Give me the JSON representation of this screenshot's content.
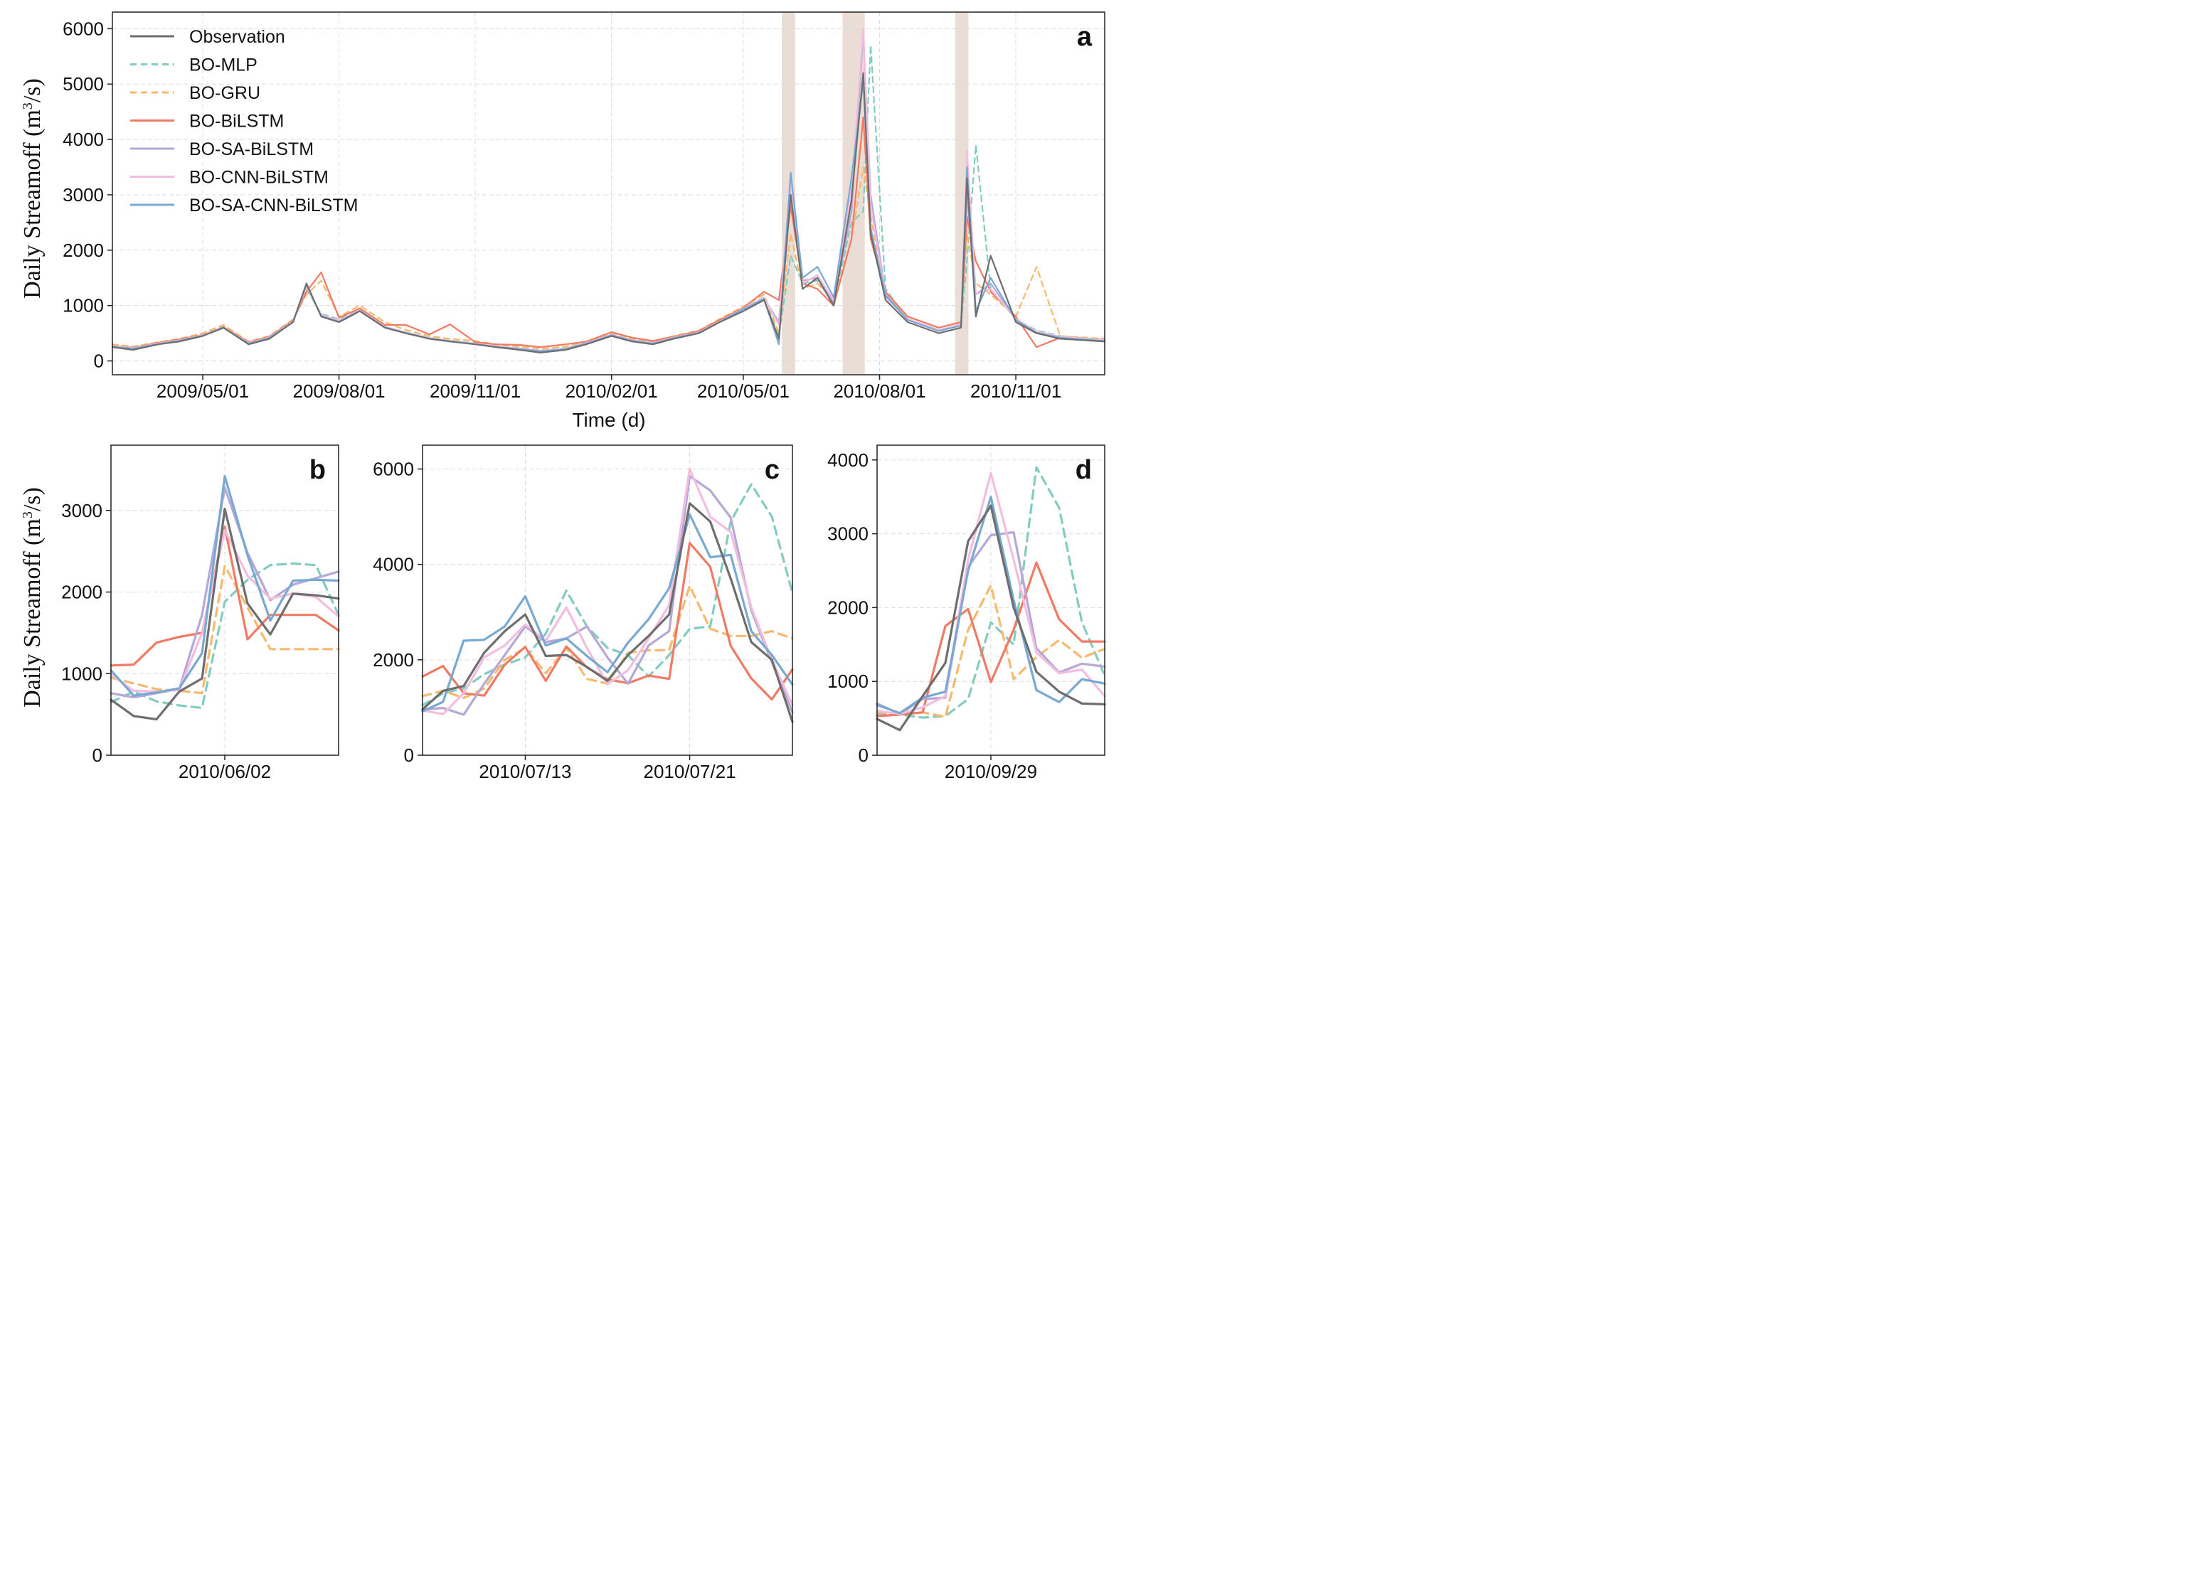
{
  "ylabel": "Daily Streamoff (m³/s)",
  "xlabel_main": "Time (d)",
  "colors": {
    "Observation": "#6e6e6e",
    "BO-MLP": "#84cbc0",
    "BO-GRU": "#f7b96d",
    "BO-BiLSTM": "#f07a63",
    "BO-SA-BiLSTM": "#b6a8d6",
    "BO-CNN-BiLSTM": "#f3bde0",
    "BO-SA-CNN-BiLSTM": "#78a9d3",
    "highlight": "#e9ddd6"
  },
  "chart_data": [
    {
      "panel": "a",
      "type": "line",
      "xlabel": "Time (d)",
      "ylabel": "Daily Streamoff (m³/s)",
      "x_range": [
        "2009-03-01",
        "2010-12-31"
      ],
      "ylim": [
        -250,
        6300
      ],
      "yticks": [
        0,
        1000,
        2000,
        3000,
        4000,
        5000,
        6000
      ],
      "xticks": [
        "2009/05/01",
        "2009/08/01",
        "2009/11/01",
        "2010/02/01",
        "2010/05/01",
        "2010/08/01",
        "2010/11/01"
      ],
      "grid": true,
      "legend": "top-left",
      "highlight_ranges": [
        [
          "2010-05-27",
          "2010-06-05"
        ],
        [
          "2010-07-07",
          "2010-07-22"
        ],
        [
          "2010-09-21",
          "2010-09-30"
        ]
      ],
      "x": [
        "2009-03-01",
        "2009-03-15",
        "2009-04-01",
        "2009-04-15",
        "2009-05-01",
        "2009-05-15",
        "2009-06-01",
        "2009-06-15",
        "2009-07-01",
        "2009-07-10",
        "2009-07-20",
        "2009-08-01",
        "2009-08-15",
        "2009-09-01",
        "2009-09-15",
        "2009-10-01",
        "2009-10-15",
        "2009-11-01",
        "2009-11-15",
        "2009-12-01",
        "2009-12-15",
        "2010-01-01",
        "2010-01-15",
        "2010-02-01",
        "2010-02-15",
        "2010-03-01",
        "2010-03-15",
        "2010-04-01",
        "2010-04-15",
        "2010-05-01",
        "2010-05-15",
        "2010-05-25",
        "2010-06-02",
        "2010-06-10",
        "2010-06-20",
        "2010-07-01",
        "2010-07-13",
        "2010-07-21",
        "2010-07-26",
        "2010-08-05",
        "2010-08-20",
        "2010-09-10",
        "2010-09-25",
        "2010-09-29",
        "2010-10-05",
        "2010-10-15",
        "2010-11-01",
        "2010-11-15",
        "2010-12-01",
        "2010-12-31"
      ],
      "series": [
        {
          "name": "Observation",
          "style": "solid",
          "values": [
            250,
            200,
            300,
            350,
            450,
            600,
            300,
            400,
            700,
            1400,
            800,
            700,
            900,
            600,
            500,
            400,
            350,
            300,
            250,
            200,
            150,
            200,
            300,
            450,
            350,
            300,
            400,
            500,
            700,
            900,
            1100,
            400,
            3000,
            1300,
            1500,
            1000,
            2900,
            5200,
            2300,
            1100,
            700,
            500,
            600,
            3300,
            800,
            1900,
            700,
            500,
            400,
            350
          ]
        },
        {
          "name": "BO-MLP",
          "style": "dashed",
          "values": [
            280,
            250,
            320,
            380,
            480,
            620,
            330,
            430,
            720,
            1300,
            850,
            750,
            920,
            620,
            520,
            420,
            370,
            320,
            270,
            230,
            190,
            230,
            330,
            480,
            380,
            330,
            430,
            520,
            720,
            950,
            1150,
            450,
            1900,
            1400,
            1450,
            1050,
            2500,
            2700,
            5700,
            1300,
            750,
            550,
            650,
            1800,
            3900,
            1300,
            750,
            550,
            450,
            380
          ]
        },
        {
          "name": "BO-GRU",
          "style": "dashed",
          "values": [
            300,
            260,
            340,
            400,
            500,
            650,
            350,
            450,
            750,
            1200,
            1450,
            800,
            1000,
            700,
            560,
            450,
            400,
            360,
            300,
            260,
            220,
            260,
            350,
            500,
            400,
            360,
            450,
            550,
            760,
            980,
            1200,
            500,
            2300,
            1300,
            1400,
            1100,
            2200,
            3500,
            2600,
            1200,
            800,
            600,
            700,
            2300,
            1400,
            1200,
            800,
            1700,
            450,
            400
          ]
        },
        {
          "name": "BO-BiLSTM",
          "style": "solid",
          "values": [
            270,
            240,
            330,
            390,
            470,
            610,
            340,
            440,
            730,
            1250,
            1600,
            780,
            950,
            650,
            650,
            480,
            660,
            340,
            300,
            290,
            250,
            300,
            350,
            520,
            420,
            360,
            440,
            540,
            740,
            960,
            1250,
            1100,
            2800,
            1400,
            1300,
            1000,
            2200,
            4400,
            2200,
            1250,
            800,
            600,
            700,
            2600,
            1800,
            1250,
            800,
            250,
            420,
            380
          ]
        },
        {
          "name": "BO-SA-BiLSTM",
          "style": "solid",
          "values": [
            260,
            230,
            310,
            370,
            460,
            600,
            320,
            420,
            710,
            1350,
            820,
            720,
            910,
            610,
            510,
            410,
            360,
            310,
            260,
            220,
            180,
            220,
            320,
            470,
            370,
            320,
            420,
            510,
            710,
            940,
            1130,
            700,
            3300,
            1450,
            1500,
            1050,
            2700,
            5900,
            3000,
            1200,
            750,
            550,
            650,
            3000,
            1200,
            1400,
            750,
            520,
            430,
            370
          ]
        },
        {
          "name": "BO-CNN-BiLSTM",
          "style": "solid",
          "values": [
            265,
            235,
            315,
            375,
            465,
            605,
            325,
            425,
            715,
            1350,
            830,
            730,
            915,
            615,
            515,
            415,
            365,
            315,
            265,
            225,
            185,
            225,
            325,
            475,
            375,
            325,
            425,
            515,
            715,
            945,
            1140,
            650,
            3300,
            1400,
            1550,
            1100,
            3100,
            6000,
            2800,
            1150,
            760,
            560,
            660,
            3800,
            1200,
            1300,
            760,
            530,
            440,
            375
          ]
        },
        {
          "name": "BO-SA-CNN-BiLSTM",
          "style": "solid",
          "values": [
            255,
            225,
            305,
            365,
            455,
            595,
            315,
            415,
            705,
            1380,
            810,
            710,
            905,
            605,
            505,
            405,
            355,
            305,
            255,
            215,
            175,
            215,
            315,
            465,
            365,
            315,
            415,
            505,
            705,
            935,
            1120,
            300,
            3400,
            1500,
            1700,
            1150,
            3300,
            5050,
            2400,
            1180,
            740,
            540,
            640,
            3500,
            900,
            1500,
            740,
            510,
            420,
            360
          ]
        }
      ]
    },
    {
      "panel": "b",
      "type": "line",
      "xlim": [
        0,
        10
      ],
      "ylim": [
        0,
        3800
      ],
      "yticks": [
        0,
        1000,
        2000,
        3000
      ],
      "xticks": [
        {
          "pos": 5,
          "label": "2010/06/02"
        }
      ],
      "x": [
        0,
        1,
        2,
        3,
        4,
        5,
        6,
        7,
        8,
        9,
        10
      ],
      "series": [
        {
          "name": "Observation",
          "values": [
            680,
            480,
            440,
            780,
            940,
            3020,
            1860,
            1480,
            1980,
            1960,
            1920
          ]
        },
        {
          "name": "BO-MLP",
          "values": [
            650,
            780,
            660,
            610,
            580,
            1880,
            2150,
            2330,
            2350,
            2330,
            1720
          ]
        },
        {
          "name": "BO-GRU",
          "values": [
            950,
            880,
            810,
            790,
            760,
            2320,
            1810,
            1300,
            1300,
            1300,
            1300
          ]
        },
        {
          "name": "BO-BiLSTM",
          "values": [
            1100,
            1110,
            1380,
            1450,
            1500,
            2800,
            1420,
            1720,
            1720,
            1720,
            1530
          ]
        },
        {
          "name": "BO-SA-BiLSTM",
          "values": [
            760,
            710,
            760,
            810,
            1720,
            3280,
            2480,
            1900,
            2090,
            2170,
            2250
          ]
        },
        {
          "name": "BO-CNN-BiLSTM",
          "values": [
            990,
            790,
            780,
            800,
            1500,
            2760,
            2200,
            1920,
            1980,
            1940,
            1700
          ]
        },
        {
          "name": "BO-SA-CNN-BiLSTM",
          "values": [
            1040,
            730,
            770,
            820,
            1250,
            3420,
            2450,
            1650,
            2140,
            2150,
            2140
          ]
        }
      ]
    },
    {
      "panel": "c",
      "type": "line",
      "xlim": [
        0,
        18
      ],
      "ylim": [
        0,
        6500
      ],
      "yticks": [
        0,
        2000,
        4000,
        6000
      ],
      "xticks": [
        {
          "pos": 5,
          "label": "2010/07/13"
        },
        {
          "pos": 13,
          "label": "2010/07/21"
        }
      ],
      "x": [
        0,
        1,
        2,
        3,
        4,
        5,
        6,
        7,
        8,
        9,
        10,
        11,
        12,
        13,
        14,
        15,
        16,
        17,
        18
      ],
      "series": [
        {
          "name": "Observation",
          "values": [
            960,
            1350,
            1450,
            2150,
            2600,
            2950,
            2080,
            2100,
            1850,
            1560,
            2100,
            2500,
            2950,
            5280,
            4900,
            3700,
            2370,
            2000,
            700
          ]
        },
        {
          "name": "BO-MLP",
          "values": [
            1050,
            1300,
            1400,
            1700,
            1900,
            2050,
            2550,
            3450,
            2700,
            2250,
            2100,
            1650,
            2100,
            2650,
            2700,
            4900,
            5680,
            5000,
            3400
          ]
        },
        {
          "name": "BO-GRU",
          "values": [
            1240,
            1350,
            1200,
            1400,
            2000,
            2250,
            1720,
            2250,
            1600,
            1500,
            2150,
            2200,
            2200,
            3550,
            2650,
            2500,
            2500,
            2600,
            2450
          ]
        },
        {
          "name": "BO-BiLSTM",
          "values": [
            1650,
            1870,
            1300,
            1250,
            1900,
            2270,
            1560,
            2280,
            1840,
            1590,
            1510,
            1670,
            1600,
            4450,
            3950,
            2290,
            1610,
            1170,
            1800
          ]
        },
        {
          "name": "BO-SA-BiLSTM",
          "values": [
            960,
            990,
            850,
            1500,
            2100,
            2700,
            2370,
            2450,
            2700,
            2050,
            1500,
            2300,
            2600,
            5850,
            5550,
            4980,
            3030,
            1950,
            900
          ]
        },
        {
          "name": "BO-CNN-BiLSTM",
          "values": [
            940,
            860,
            1300,
            2050,
            2300,
            2740,
            2400,
            3100,
            2250,
            1490,
            1780,
            2450,
            3150,
            6000,
            5000,
            4680,
            3100,
            2000,
            1050
          ]
        },
        {
          "name": "BO-SA-CNN-BiLSTM",
          "values": [
            920,
            1120,
            2400,
            2420,
            2700,
            3330,
            2300,
            2450,
            2080,
            1740,
            2360,
            2850,
            3500,
            5050,
            4150,
            4200,
            2600,
            2100,
            1480
          ]
        }
      ]
    },
    {
      "panel": "d",
      "type": "line",
      "xlim": [
        0,
        10
      ],
      "ylim": [
        0,
        4200
      ],
      "yticks": [
        0,
        1000,
        2000,
        3000,
        4000
      ],
      "xticks": [
        {
          "pos": 5,
          "label": "2010/09/29"
        }
      ],
      "x": [
        0,
        1,
        2,
        3,
        4,
        5,
        6,
        7,
        8,
        9,
        10
      ],
      "series": [
        {
          "name": "Observation",
          "values": [
            490,
            340,
            800,
            1250,
            2900,
            3380,
            2000,
            1130,
            860,
            700,
            690
          ]
        },
        {
          "name": "BO-MLP",
          "values": [
            550,
            550,
            510,
            530,
            760,
            1800,
            1500,
            3900,
            3350,
            1800,
            1080
          ]
        },
        {
          "name": "BO-GRU",
          "values": [
            580,
            570,
            580,
            520,
            1700,
            2300,
            1030,
            1330,
            1560,
            1320,
            1440
          ]
        },
        {
          "name": "BO-BiLSTM",
          "values": [
            530,
            550,
            580,
            1750,
            1980,
            990,
            1700,
            2610,
            1840,
            1540,
            1540
          ]
        },
        {
          "name": "BO-SA-BiLSTM",
          "values": [
            700,
            560,
            760,
            780,
            2550,
            2980,
            3020,
            1450,
            1120,
            1240,
            1200
          ]
        },
        {
          "name": "BO-CNN-BiLSTM",
          "values": [
            600,
            560,
            650,
            800,
            2650,
            3820,
            2650,
            1390,
            1110,
            1160,
            800
          ]
        },
        {
          "name": "BO-SA-CNN-BiLSTM",
          "values": [
            680,
            570,
            780,
            860,
            2500,
            3500,
            2100,
            880,
            720,
            1030,
            970
          ]
        }
      ]
    }
  ]
}
